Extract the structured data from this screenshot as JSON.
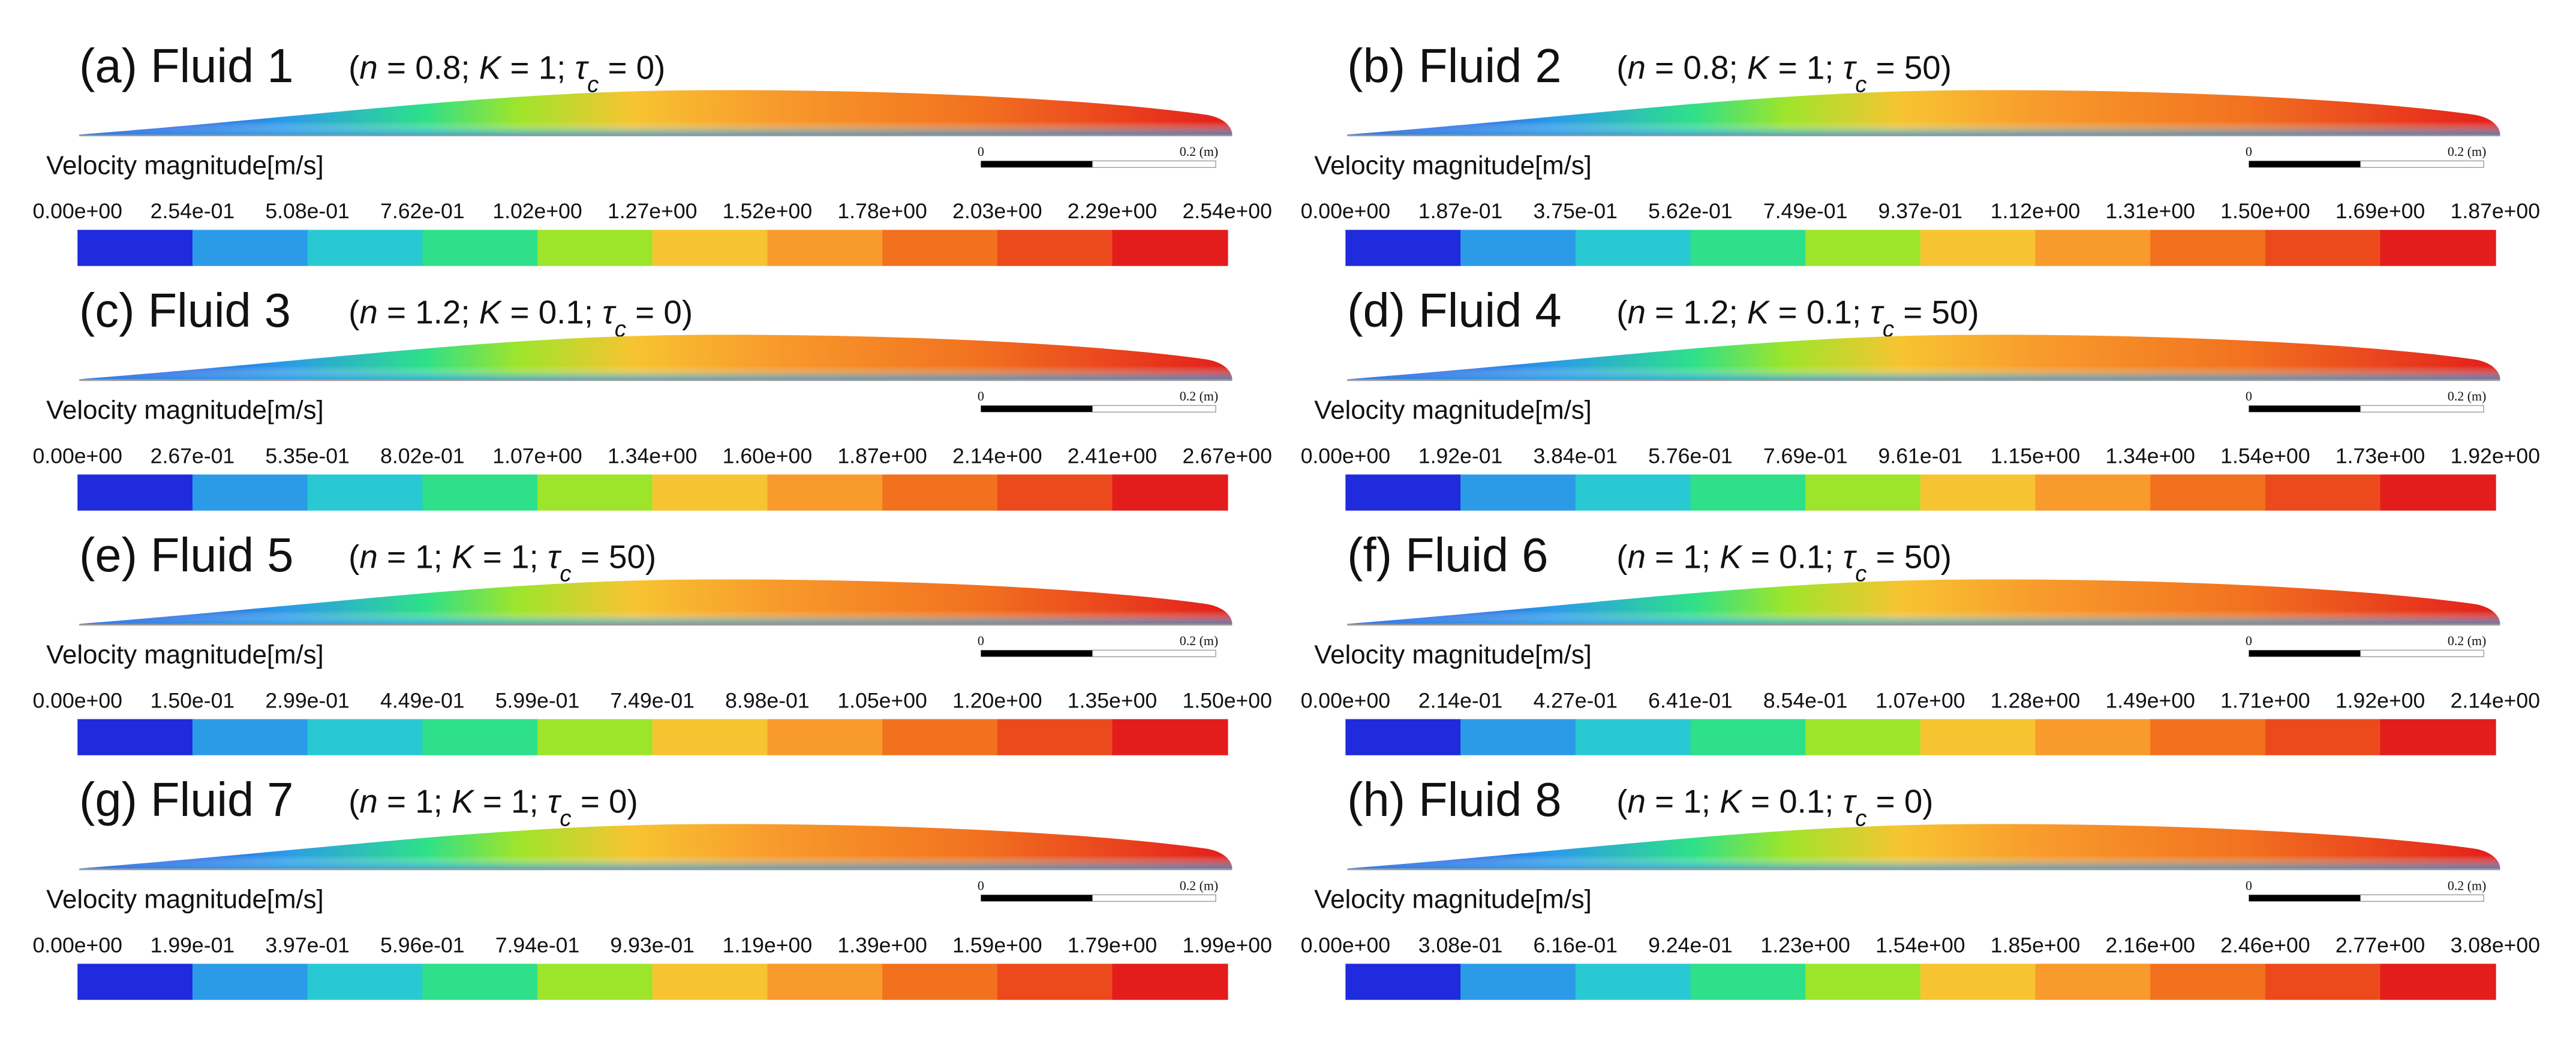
{
  "legend_title": "Velocity magnitude[m/s]",
  "scale_bar": {
    "start": "0",
    "end": "0.2 (m)"
  },
  "colorbar_colors": [
    "#1f2bdc",
    "#2b9be8",
    "#29c9d3",
    "#2ee08a",
    "#9de52b",
    "#f7c431",
    "#f89b2c",
    "#f2711f",
    "#ec4a1d",
    "#e31d1c"
  ],
  "panels": [
    {
      "label": "(a) Fluid 1",
      "params": [
        "(",
        "n",
        " = 0.8; ",
        "K",
        " = 1;  ",
        "τ",
        "c",
        " = 0)"
      ],
      "ticks": [
        "0.00e+00",
        "2.54e-01",
        "5.08e-01",
        "7.62e-01",
        "1.02e+00",
        "1.27e+00",
        "1.52e+00",
        "1.78e+00",
        "2.03e+00",
        "2.29e+00",
        "2.54e+00"
      ]
    },
    {
      "label": "(b) Fluid 2",
      "params": [
        "(",
        "n",
        " = 0.8; ",
        "K",
        " = 1;  ",
        "τ",
        "c",
        " = 50)"
      ],
      "ticks": [
        "0.00e+00",
        "1.87e-01",
        "3.75e-01",
        "5.62e-01",
        "7.49e-01",
        "9.37e-01",
        "1.12e+00",
        "1.31e+00",
        "1.50e+00",
        "1.69e+00",
        "1.87e+00"
      ]
    },
    {
      "label": "(c) Fluid 3",
      "params": [
        "(",
        "n",
        " = 1.2; ",
        "K",
        " = 0.1;  ",
        "τ",
        "c",
        " = 0)"
      ],
      "ticks": [
        "0.00e+00",
        "2.67e-01",
        "5.35e-01",
        "8.02e-01",
        "1.07e+00",
        "1.34e+00",
        "1.60e+00",
        "1.87e+00",
        "2.14e+00",
        "2.41e+00",
        "2.67e+00"
      ]
    },
    {
      "label": "(d) Fluid 4",
      "params": [
        "(",
        "n",
        " = 1.2; ",
        "K",
        " = 0.1;  ",
        "τ",
        "c",
        " = 50)"
      ],
      "ticks": [
        "0.00e+00",
        "1.92e-01",
        "3.84e-01",
        "5.76e-01",
        "7.69e-01",
        "9.61e-01",
        "1.15e+00",
        "1.34e+00",
        "1.54e+00",
        "1.73e+00",
        "1.92e+00"
      ]
    },
    {
      "label": "(e) Fluid 5",
      "params": [
        "(",
        "n",
        " = 1; ",
        "K",
        " = 1;  ",
        "τ",
        "c",
        " = 50)"
      ],
      "ticks": [
        "0.00e+00",
        "1.50e-01",
        "2.99e-01",
        "4.49e-01",
        "5.99e-01",
        "7.49e-01",
        "8.98e-01",
        "1.05e+00",
        "1.20e+00",
        "1.35e+00",
        "1.50e+00"
      ]
    },
    {
      "label": "(f) Fluid 6",
      "params": [
        "(",
        "n",
        " = 1; ",
        "K",
        " = 0.1;  ",
        "τ",
        "c",
        " = 50)"
      ],
      "ticks": [
        "0.00e+00",
        "2.14e-01",
        "4.27e-01",
        "6.41e-01",
        "8.54e-01",
        "1.07e+00",
        "1.28e+00",
        "1.49e+00",
        "1.71e+00",
        "1.92e+00",
        "2.14e+00"
      ]
    },
    {
      "label": "(g) Fluid 7",
      "params": [
        "(",
        "n",
        " = 1; ",
        "K",
        " = 1;  ",
        "τ",
        "c",
        " = 0)"
      ],
      "ticks": [
        "0.00e+00",
        "1.99e-01",
        "3.97e-01",
        "5.96e-01",
        "7.94e-01",
        "9.93e-01",
        "1.19e+00",
        "1.39e+00",
        "1.59e+00",
        "1.79e+00",
        "1.99e+00"
      ]
    },
    {
      "label": "(h) Fluid 8",
      "params": [
        "(",
        "n",
        " = 1; ",
        "K",
        " = 0.1;  ",
        "τ",
        "c",
        " = 0)"
      ],
      "ticks": [
        "0.00e+00",
        "3.08e-01",
        "6.16e-01",
        "9.24e-01",
        "1.23e+00",
        "1.54e+00",
        "1.85e+00",
        "2.16e+00",
        "2.46e+00",
        "2.77e+00",
        "3.08e+00"
      ]
    }
  ]
}
